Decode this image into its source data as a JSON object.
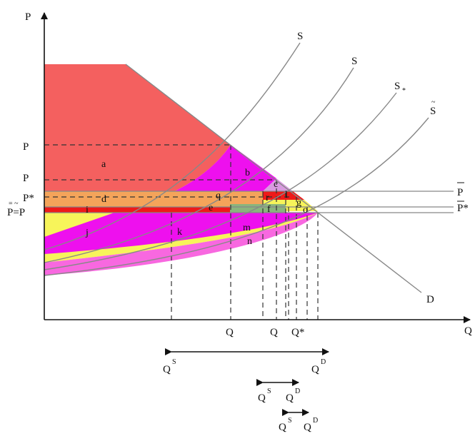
{
  "axes": {
    "y_label": "P",
    "x_label": "Q"
  },
  "curves": {
    "s1": "S",
    "s2": "S",
    "s_star": "S",
    "s_tilde": "S",
    "d": "D"
  },
  "price_labels": {
    "p1": "P",
    "p2": "P",
    "p_star": "P*",
    "p_tilde": "P=P",
    "p_bar_1": "P",
    "p_bar_star": "P*"
  },
  "quantity_labels": {
    "q1": "Q",
    "q2": "Q",
    "q_star": "Q*"
  },
  "region_labels": [
    "a",
    "b",
    "c",
    "d",
    "q",
    "r",
    "l",
    "g",
    "i",
    "e",
    "f",
    "j",
    "k",
    "m",
    "n",
    "o"
  ],
  "arrows": {
    "r1_left": "Q",
    "r1_right": "Q",
    "r2_left": "Q",
    "r2_right": "Q",
    "r3_left": "Q",
    "r3_right": "Q"
  },
  "colors": {
    "region_a": "#f4605f",
    "magenta": "#ee10ee",
    "pink": "#f868e0",
    "yellow": "#f7f45a",
    "orange": "#f4a45a",
    "red": "#ee1a1a",
    "green": "#8ab57d",
    "lilac": "#d99be0"
  }
}
